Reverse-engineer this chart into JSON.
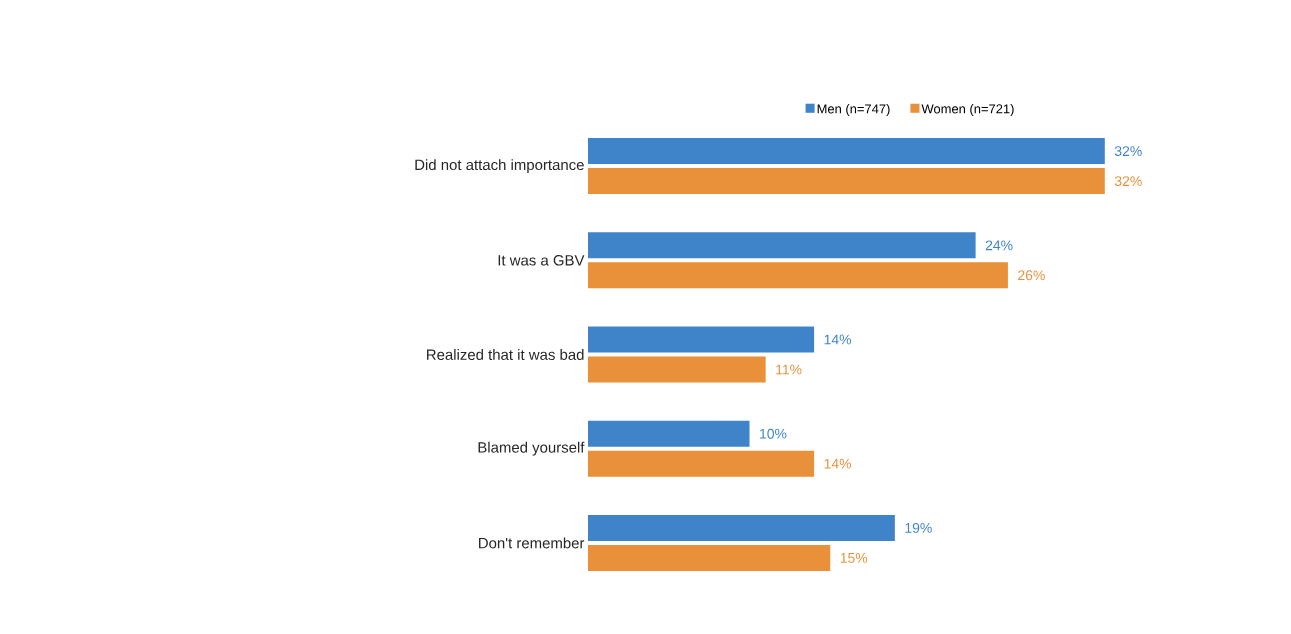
{
  "chart_data": {
    "type": "bar",
    "orientation": "horizontal",
    "legend": "top",
    "categories": [
      "Did not attach importance",
      "It was a GBV",
      "Realized that it was bad",
      "Blamed yourself",
      "Don't remember"
    ],
    "series": [
      {
        "name": "Men (n=747)",
        "color": "#3f84c9",
        "values": [
          32,
          24,
          14,
          10,
          19
        ],
        "value_labels": [
          "32%",
          "24%",
          "14%",
          "10%",
          "19%"
        ]
      },
      {
        "name": "Women (n=721)",
        "color": "#e8913a",
        "values": [
          32,
          26,
          11,
          14,
          15
        ],
        "value_labels": [
          "32%",
          "26%",
          "11%",
          "14%",
          "15%"
        ]
      }
    ]
  }
}
